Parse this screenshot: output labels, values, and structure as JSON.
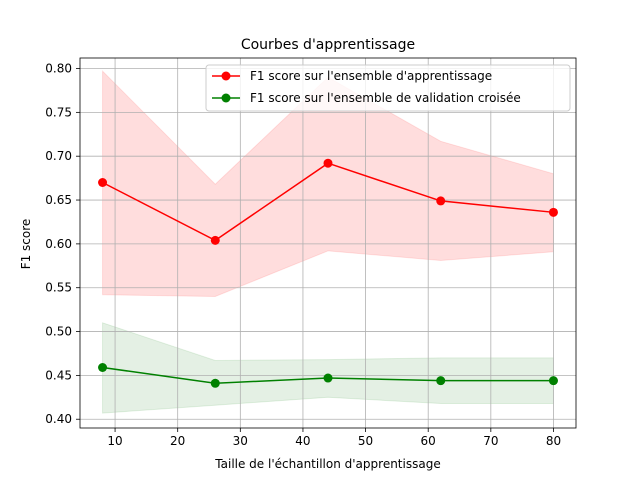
{
  "chart_data": {
    "type": "line",
    "title": "Courbes d'apprentissage",
    "xlabel": "Taille de l'échantillon d'apprentissage",
    "ylabel": "F1 score",
    "xlim": [
      4.4,
      83.6
    ],
    "ylim": [
      0.39,
      0.812
    ],
    "xticks": [
      10,
      20,
      30,
      40,
      50,
      60,
      70,
      80
    ],
    "yticks": [
      0.4,
      0.45,
      0.5,
      0.55,
      0.6,
      0.65,
      0.7,
      0.75,
      0.8
    ],
    "xtick_labels": [
      "10",
      "20",
      "30",
      "40",
      "50",
      "60",
      "70",
      "80"
    ],
    "ytick_labels": [
      "0.40",
      "0.45",
      "0.50",
      "0.55",
      "0.60",
      "0.65",
      "0.70",
      "0.75",
      "0.80"
    ],
    "grid": true,
    "legend_position": "top-right",
    "x": [
      8,
      26,
      44,
      62,
      80
    ],
    "series": [
      {
        "name": "F1 score sur l'ensemble d'apprentissage",
        "color": "#ff0000",
        "values": [
          0.67,
          0.604,
          0.692,
          0.649,
          0.636
        ],
        "band_upper": [
          0.797,
          0.668,
          0.79,
          0.717,
          0.68
        ],
        "band_lower": [
          0.542,
          0.54,
          0.592,
          0.581,
          0.591
        ],
        "band_color": "#ffdddd"
      },
      {
        "name": "F1 score sur l'ensemble de validation croisée",
        "color": "#008000",
        "values": [
          0.459,
          0.441,
          0.447,
          0.444,
          0.444
        ],
        "band_upper": [
          0.51,
          0.467,
          0.468,
          0.47,
          0.47
        ],
        "band_lower": [
          0.407,
          0.416,
          0.425,
          0.418,
          0.418
        ],
        "band_color": "#e4f0e4"
      }
    ]
  }
}
